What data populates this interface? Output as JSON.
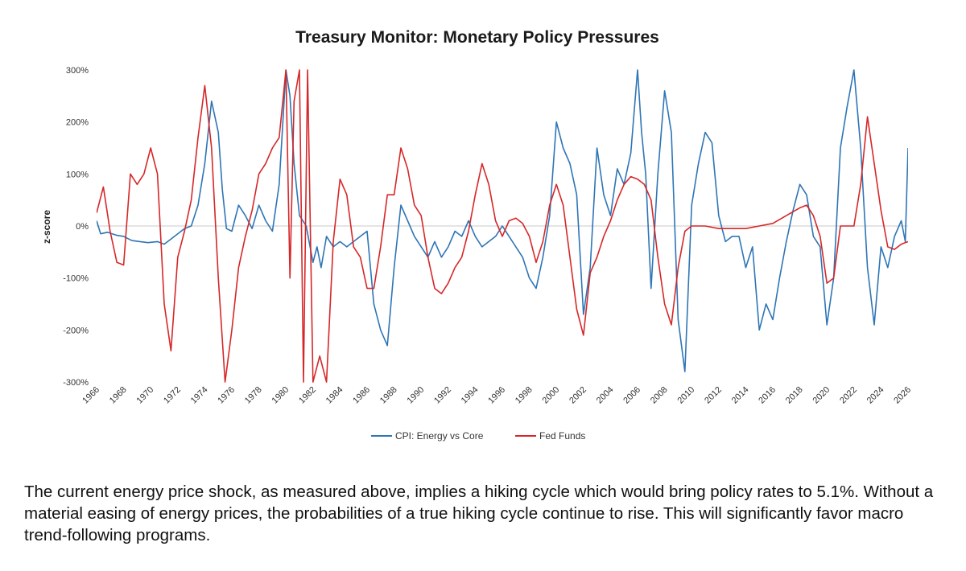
{
  "chart_data": {
    "type": "line",
    "title": "Treasury Monitor: Monetary Policy Pressures",
    "xlabel": "",
    "ylabel": "z-score",
    "xlim": [
      1966,
      2026
    ],
    "ylim": [
      -300,
      300
    ],
    "y_ticks": [
      "300%",
      "200%",
      "100%",
      "0%",
      "-100%",
      "-200%",
      "-300%"
    ],
    "y_tick_values": [
      300,
      200,
      100,
      0,
      -100,
      -200,
      -300
    ],
    "x_ticks": [
      "1966",
      "1968",
      "1970",
      "1972",
      "1974",
      "1976",
      "1978",
      "1980",
      "1982",
      "1984",
      "1986",
      "1988",
      "1990",
      "1992",
      "1994",
      "1996",
      "1998",
      "2000",
      "2002",
      "2004",
      "2006",
      "2008",
      "2010",
      "2012",
      "2014",
      "2016",
      "2018",
      "2020",
      "2022",
      "2024",
      "2026"
    ],
    "grid": false,
    "legend_position": "bottom",
    "series": [
      {
        "name": "CPI: Energy vs Core",
        "color": "#2e75b6",
        "points": [
          [
            1966.0,
            10
          ],
          [
            1966.3,
            -15
          ],
          [
            1966.8,
            -12
          ],
          [
            1967.5,
            -18
          ],
          [
            1968.0,
            -20
          ],
          [
            1968.6,
            -28
          ],
          [
            1969.2,
            -30
          ],
          [
            1969.8,
            -32
          ],
          [
            1970.5,
            -30
          ],
          [
            1971.0,
            -35
          ],
          [
            1971.5,
            -25
          ],
          [
            1972.0,
            -15
          ],
          [
            1972.5,
            -5
          ],
          [
            1973.0,
            0
          ],
          [
            1973.5,
            40
          ],
          [
            1974.0,
            120
          ],
          [
            1974.5,
            240
          ],
          [
            1975.0,
            180
          ],
          [
            1975.3,
            70
          ],
          [
            1975.6,
            -5
          ],
          [
            1976.0,
            -10
          ],
          [
            1976.5,
            40
          ],
          [
            1977.0,
            20
          ],
          [
            1977.5,
            -5
          ],
          [
            1978.0,
            40
          ],
          [
            1978.5,
            10
          ],
          [
            1979.0,
            -10
          ],
          [
            1979.5,
            80
          ],
          [
            1980.0,
            300
          ],
          [
            1980.3,
            250
          ],
          [
            1980.6,
            120
          ],
          [
            1981.0,
            20
          ],
          [
            1981.5,
            0
          ],
          [
            1982.0,
            -70
          ],
          [
            1982.3,
            -40
          ],
          [
            1982.6,
            -80
          ],
          [
            1983.0,
            -20
          ],
          [
            1983.5,
            -40
          ],
          [
            1984.0,
            -30
          ],
          [
            1984.5,
            -40
          ],
          [
            1985.0,
            -30
          ],
          [
            1985.5,
            -20
          ],
          [
            1986.0,
            -10
          ],
          [
            1986.5,
            -150
          ],
          [
            1987.0,
            -200
          ],
          [
            1987.5,
            -230
          ],
          [
            1988.0,
            -80
          ],
          [
            1988.5,
            40
          ],
          [
            1989.0,
            10
          ],
          [
            1989.5,
            -20
          ],
          [
            1990.0,
            -40
          ],
          [
            1990.5,
            -60
          ],
          [
            1991.0,
            -30
          ],
          [
            1991.5,
            -60
          ],
          [
            1992.0,
            -40
          ],
          [
            1992.5,
            -10
          ],
          [
            1993.0,
            -20
          ],
          [
            1993.5,
            10
          ],
          [
            1994.0,
            -20
          ],
          [
            1994.5,
            -40
          ],
          [
            1995.0,
            -30
          ],
          [
            1995.5,
            -20
          ],
          [
            1996.0,
            0
          ],
          [
            1996.5,
            -20
          ],
          [
            1997.0,
            -40
          ],
          [
            1997.5,
            -60
          ],
          [
            1998.0,
            -100
          ],
          [
            1998.5,
            -120
          ],
          [
            1999.0,
            -60
          ],
          [
            1999.5,
            20
          ],
          [
            2000.0,
            200
          ],
          [
            2000.5,
            150
          ],
          [
            2001.0,
            120
          ],
          [
            2001.5,
            60
          ],
          [
            2002.0,
            -170
          ],
          [
            2002.5,
            -80
          ],
          [
            2003.0,
            150
          ],
          [
            2003.5,
            60
          ],
          [
            2004.0,
            20
          ],
          [
            2004.5,
            110
          ],
          [
            2005.0,
            80
          ],
          [
            2005.5,
            140
          ],
          [
            2006.0,
            300
          ],
          [
            2006.3,
            180
          ],
          [
            2006.6,
            100
          ],
          [
            2007.0,
            -120
          ],
          [
            2007.5,
            100
          ],
          [
            2008.0,
            260
          ],
          [
            2008.5,
            180
          ],
          [
            2009.0,
            -180
          ],
          [
            2009.5,
            -280
          ],
          [
            2010.0,
            40
          ],
          [
            2010.5,
            120
          ],
          [
            2011.0,
            180
          ],
          [
            2011.5,
            160
          ],
          [
            2012.0,
            20
          ],
          [
            2012.5,
            -30
          ],
          [
            2013.0,
            -20
          ],
          [
            2013.5,
            -20
          ],
          [
            2014.0,
            -80
          ],
          [
            2014.5,
            -40
          ],
          [
            2015.0,
            -200
          ],
          [
            2015.5,
            -150
          ],
          [
            2016.0,
            -180
          ],
          [
            2016.5,
            -100
          ],
          [
            2017.0,
            -30
          ],
          [
            2017.5,
            30
          ],
          [
            2018.0,
            80
          ],
          [
            2018.5,
            60
          ],
          [
            2019.0,
            -20
          ],
          [
            2019.5,
            -40
          ],
          [
            2020.0,
            -190
          ],
          [
            2020.5,
            -100
          ],
          [
            2021.0,
            150
          ],
          [
            2021.5,
            230
          ],
          [
            2022.0,
            300
          ],
          [
            2022.5,
            150
          ],
          [
            2023.0,
            -80
          ],
          [
            2023.5,
            -190
          ],
          [
            2024.0,
            -40
          ],
          [
            2024.5,
            -80
          ],
          [
            2025.0,
            -20
          ],
          [
            2025.5,
            10
          ],
          [
            2025.8,
            -30
          ],
          [
            2026.0,
            150
          ]
        ]
      },
      {
        "name": "Fed Funds",
        "color": "#d62728",
        "points": [
          [
            1966.0,
            25
          ],
          [
            1966.5,
            75
          ],
          [
            1967.0,
            -10
          ],
          [
            1967.5,
            -70
          ],
          [
            1968.0,
            -75
          ],
          [
            1968.5,
            100
          ],
          [
            1969.0,
            80
          ],
          [
            1969.5,
            100
          ],
          [
            1970.0,
            150
          ],
          [
            1970.5,
            100
          ],
          [
            1971.0,
            -150
          ],
          [
            1971.5,
            -240
          ],
          [
            1972.0,
            -60
          ],
          [
            1972.5,
            -10
          ],
          [
            1973.0,
            50
          ],
          [
            1973.5,
            170
          ],
          [
            1974.0,
            270
          ],
          [
            1974.5,
            150
          ],
          [
            1975.0,
            -100
          ],
          [
            1975.5,
            -300
          ],
          [
            1976.0,
            -200
          ],
          [
            1976.5,
            -80
          ],
          [
            1977.0,
            -20
          ],
          [
            1977.5,
            30
          ],
          [
            1978.0,
            100
          ],
          [
            1978.5,
            120
          ],
          [
            1979.0,
            150
          ],
          [
            1979.5,
            170
          ],
          [
            1980.0,
            300
          ],
          [
            1980.3,
            -100
          ],
          [
            1980.6,
            240
          ],
          [
            1981.0,
            300
          ],
          [
            1981.3,
            -300
          ],
          [
            1981.6,
            300
          ],
          [
            1982.0,
            -300
          ],
          [
            1982.5,
            -250
          ],
          [
            1983.0,
            -300
          ],
          [
            1983.5,
            -30
          ],
          [
            1984.0,
            90
          ],
          [
            1984.5,
            60
          ],
          [
            1985.0,
            -40
          ],
          [
            1985.5,
            -60
          ],
          [
            1986.0,
            -120
          ],
          [
            1986.5,
            -120
          ],
          [
            1987.0,
            -40
          ],
          [
            1987.5,
            60
          ],
          [
            1988.0,
            60
          ],
          [
            1988.5,
            150
          ],
          [
            1989.0,
            110
          ],
          [
            1989.5,
            40
          ],
          [
            1990.0,
            20
          ],
          [
            1990.5,
            -60
          ],
          [
            1991.0,
            -120
          ],
          [
            1991.5,
            -130
          ],
          [
            1992.0,
            -110
          ],
          [
            1992.5,
            -80
          ],
          [
            1993.0,
            -60
          ],
          [
            1993.5,
            -10
          ],
          [
            1994.0,
            60
          ],
          [
            1994.5,
            120
          ],
          [
            1995.0,
            80
          ],
          [
            1995.5,
            10
          ],
          [
            1996.0,
            -20
          ],
          [
            1996.5,
            10
          ],
          [
            1997.0,
            15
          ],
          [
            1997.5,
            5
          ],
          [
            1998.0,
            -20
          ],
          [
            1998.5,
            -70
          ],
          [
            1999.0,
            -30
          ],
          [
            1999.5,
            40
          ],
          [
            2000.0,
            80
          ],
          [
            2000.5,
            40
          ],
          [
            2001.0,
            -60
          ],
          [
            2001.5,
            -160
          ],
          [
            2002.0,
            -210
          ],
          [
            2002.5,
            -90
          ],
          [
            2003.0,
            -60
          ],
          [
            2003.5,
            -20
          ],
          [
            2004.0,
            10
          ],
          [
            2004.5,
            50
          ],
          [
            2005.0,
            80
          ],
          [
            2005.5,
            95
          ],
          [
            2006.0,
            90
          ],
          [
            2006.5,
            80
          ],
          [
            2007.0,
            50
          ],
          [
            2007.5,
            -60
          ],
          [
            2008.0,
            -150
          ],
          [
            2008.5,
            -190
          ],
          [
            2009.0,
            -80
          ],
          [
            2009.5,
            -10
          ],
          [
            2010.0,
            0
          ],
          [
            2011.0,
            0
          ],
          [
            2012.0,
            -5
          ],
          [
            2013.0,
            -5
          ],
          [
            2014.0,
            -5
          ],
          [
            2015.0,
            0
          ],
          [
            2016.0,
            5
          ],
          [
            2017.0,
            20
          ],
          [
            2018.0,
            35
          ],
          [
            2018.5,
            40
          ],
          [
            2019.0,
            20
          ],
          [
            2019.5,
            -20
          ],
          [
            2020.0,
            -110
          ],
          [
            2020.5,
            -100
          ],
          [
            2021.0,
            0
          ],
          [
            2022.0,
            0
          ],
          [
            2022.5,
            80
          ],
          [
            2023.0,
            210
          ],
          [
            2023.5,
            120
          ],
          [
            2024.0,
            30
          ],
          [
            2024.5,
            -40
          ],
          [
            2025.0,
            -45
          ],
          [
            2025.5,
            -35
          ],
          [
            2026.0,
            -30
          ]
        ]
      }
    ]
  },
  "caption": "The current energy price shock, as measured above, implies a hiking cycle which would bring policy rates to 5.1%. Without a material easing of energy prices, the probabilities of a true hiking cycle continue to rise. This will significantly favor macro trend-following programs."
}
